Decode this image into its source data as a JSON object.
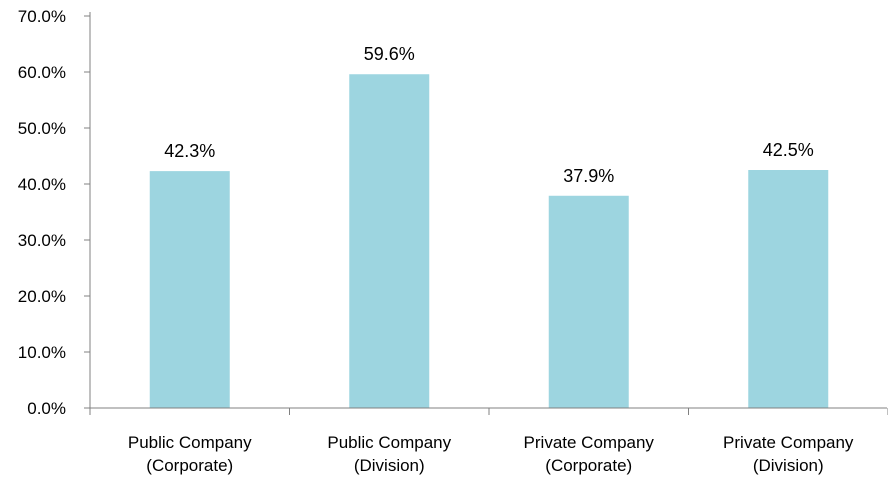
{
  "chart_data": {
    "type": "bar",
    "title": "",
    "xlabel": "",
    "ylabel": "",
    "categories": [
      [
        "Public Company",
        "(Corporate)"
      ],
      [
        "Public Company",
        "(Division)"
      ],
      [
        "Private Company",
        "(Corporate)"
      ],
      [
        "Private Company",
        "(Division)"
      ]
    ],
    "values": [
      42.3,
      59.6,
      37.9,
      42.5
    ],
    "data_labels": [
      "42.3%",
      "59.6%",
      "37.9%",
      "42.5%"
    ],
    "ylim": [
      0,
      70
    ],
    "y_ticks": [
      0,
      10,
      20,
      30,
      40,
      50,
      60,
      70
    ],
    "y_tick_labels": [
      "0.0%",
      "10.0%",
      "20.0%",
      "30.0%",
      "40.0%",
      "50.0%",
      "60.0%",
      "70.0%"
    ],
    "grid": false,
    "legend": "none",
    "bar_color": "#9dd5e0",
    "axis_color": "#808080"
  }
}
